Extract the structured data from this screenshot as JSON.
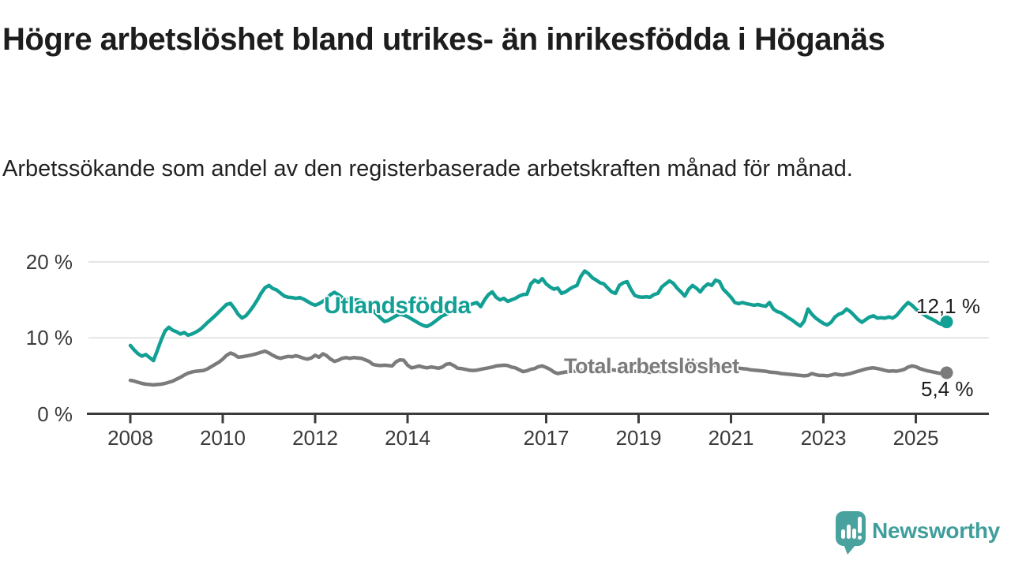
{
  "header": {
    "title": "Högre arbetslöshet bland utrikes- än inrikesfödda i Höganäs",
    "subtitle": "Arbetssökande som andel av den registerbaserade arbetskraften månad för månad."
  },
  "chart_data": {
    "type": "line",
    "unit": "%",
    "x_axis": {
      "start_year": 2008,
      "interval": "monthly",
      "ticks": [
        {
          "label": "2008",
          "year": 2008
        },
        {
          "label": "2010",
          "year": 2010
        },
        {
          "label": "2012",
          "year": 2012
        },
        {
          "label": "2014",
          "year": 2014
        },
        {
          "label": "2017",
          "year": 2017
        },
        {
          "label": "2019",
          "year": 2019
        },
        {
          "label": "2021",
          "year": 2021
        },
        {
          "label": "2023",
          "year": 2023
        },
        {
          "label": "2025",
          "year": 2025
        }
      ]
    },
    "y_axis": {
      "range": [
        0,
        21.5
      ],
      "grid": "horizontal",
      "ticks": [
        {
          "label": "20 %",
          "value": 20
        },
        {
          "label": "10 %",
          "value": 10
        },
        {
          "label": "0 %",
          "value": 0
        }
      ]
    },
    "series": [
      {
        "name": "Utlandsfödda",
        "color": "#12a095",
        "end_label": "12,1 %",
        "end_value": 12.1,
        "values": [
          9.0,
          8.4,
          7.9,
          7.6,
          7.8,
          7.4,
          7.0,
          8.3,
          9.7,
          10.9,
          11.4,
          11.0,
          10.8,
          10.5,
          10.7,
          10.35,
          10.5,
          10.75,
          11.05,
          11.5,
          12.0,
          12.45,
          12.9,
          13.4,
          13.9,
          14.4,
          14.55,
          13.9,
          13.1,
          12.6,
          12.9,
          13.5,
          14.2,
          15.0,
          15.9,
          16.6,
          16.9,
          16.5,
          16.3,
          15.9,
          15.5,
          15.35,
          15.3,
          15.2,
          15.3,
          15.1,
          14.8,
          14.5,
          14.3,
          14.5,
          14.8,
          15.2,
          15.7,
          16.0,
          15.7,
          15.3,
          15.1,
          14.9,
          15.0,
          15.0,
          14.9,
          14.6,
          14.1,
          13.6,
          13.1,
          12.6,
          12.15,
          12.3,
          12.6,
          12.9,
          13.1,
          13.0,
          12.8,
          12.5,
          12.2,
          11.9,
          11.65,
          11.5,
          11.75,
          12.1,
          12.5,
          12.9,
          13.1,
          13.3,
          13.5,
          13.7,
          13.9,
          14.1,
          14.3,
          14.5,
          14.65,
          14.1,
          15.0,
          15.7,
          16.05,
          15.35,
          15.0,
          15.2,
          14.8,
          15.0,
          15.2,
          15.5,
          15.7,
          15.75,
          17.1,
          17.6,
          17.3,
          17.8,
          17.1,
          16.7,
          16.4,
          16.55,
          15.85,
          16.05,
          16.4,
          16.7,
          16.9,
          18.1,
          18.8,
          18.45,
          17.9,
          17.6,
          17.25,
          17.1,
          16.55,
          16.05,
          15.85,
          16.9,
          17.25,
          17.4,
          16.4,
          15.6,
          15.4,
          15.35,
          15.4,
          15.35,
          15.7,
          15.85,
          16.7,
          17.1,
          17.5,
          17.2,
          16.55,
          16.05,
          15.5,
          16.4,
          16.9,
          16.55,
          16.05,
          16.7,
          17.1,
          16.9,
          17.6,
          17.4,
          16.4,
          15.9,
          15.35,
          14.65,
          14.5,
          14.65,
          14.5,
          14.4,
          14.3,
          14.4,
          14.25,
          14.15,
          14.65,
          13.8,
          13.45,
          13.3,
          12.95,
          12.6,
          12.3,
          11.9,
          11.55,
          12.2,
          13.8,
          13.1,
          12.6,
          12.25,
          11.9,
          11.7,
          12.05,
          12.75,
          13.1,
          13.3,
          13.8,
          13.45,
          12.95,
          12.4,
          12.05,
          12.4,
          12.75,
          12.9,
          12.6,
          12.65,
          12.6,
          12.75,
          12.6,
          12.95,
          13.55,
          14.15,
          14.65,
          14.3,
          13.8,
          13.35,
          13.1,
          12.75,
          12.5,
          12.25,
          11.9,
          11.75,
          12.1
        ]
      },
      {
        "name": "Total arbetslöshet",
        "color": "#7b7b7b",
        "end_label": "5,4 %",
        "end_value": 5.4,
        "values": [
          4.4,
          4.3,
          4.15,
          4.0,
          3.9,
          3.85,
          3.8,
          3.85,
          3.9,
          4.0,
          4.15,
          4.3,
          4.55,
          4.8,
          5.1,
          5.35,
          5.5,
          5.6,
          5.65,
          5.7,
          5.9,
          6.2,
          6.5,
          6.8,
          7.2,
          7.7,
          8.0,
          7.8,
          7.45,
          7.5,
          7.6,
          7.7,
          7.8,
          7.95,
          8.1,
          8.25,
          8.0,
          7.7,
          7.45,
          7.3,
          7.45,
          7.55,
          7.5,
          7.65,
          7.5,
          7.3,
          7.2,
          7.35,
          7.7,
          7.45,
          7.9,
          7.65,
          7.2,
          6.9,
          7.05,
          7.3,
          7.4,
          7.3,
          7.4,
          7.35,
          7.3,
          7.1,
          6.9,
          6.5,
          6.4,
          6.35,
          6.4,
          6.35,
          6.3,
          6.85,
          7.1,
          7.05,
          6.4,
          6.05,
          6.15,
          6.3,
          6.15,
          6.05,
          6.15,
          6.1,
          6.0,
          6.15,
          6.5,
          6.6,
          6.35,
          6.0,
          5.95,
          5.85,
          5.75,
          5.7,
          5.75,
          5.85,
          5.95,
          6.05,
          6.15,
          6.3,
          6.35,
          6.4,
          6.35,
          6.15,
          6.05,
          5.8,
          5.55,
          5.65,
          5.85,
          5.95,
          6.2,
          6.3,
          6.1,
          5.85,
          5.5,
          5.3,
          5.4,
          5.5,
          5.55,
          5.6,
          5.65,
          5.7,
          5.75,
          5.8,
          5.85,
          5.9,
          5.95,
          5.9,
          5.85,
          5.8,
          5.75,
          5.7,
          5.65,
          5.6,
          5.6,
          5.6,
          5.55,
          5.5,
          5.5,
          5.45,
          5.5,
          5.55,
          5.6,
          5.65,
          5.7,
          5.8,
          5.9,
          6.0,
          6.1,
          6.2,
          6.35,
          6.5,
          6.55,
          6.5,
          6.45,
          6.4,
          6.35,
          6.3,
          6.25,
          6.2,
          6.1,
          6.05,
          6.0,
          5.95,
          5.9,
          5.8,
          5.75,
          5.7,
          5.65,
          5.6,
          5.5,
          5.45,
          5.4,
          5.3,
          5.25,
          5.2,
          5.15,
          5.1,
          5.05,
          5.0,
          5.05,
          5.3,
          5.15,
          5.05,
          5.05,
          5.0,
          5.1,
          5.25,
          5.15,
          5.1,
          5.2,
          5.3,
          5.45,
          5.6,
          5.75,
          5.9,
          6.0,
          6.05,
          5.95,
          5.85,
          5.7,
          5.6,
          5.65,
          5.6,
          5.7,
          5.85,
          6.15,
          6.3,
          6.2,
          5.95,
          5.8,
          5.65,
          5.55,
          5.45,
          5.35,
          5.3,
          5.4
        ]
      }
    ],
    "colors": {
      "grid": "#dcdcdc",
      "axis": "#3b3b3b",
      "tick_text": "#3b3b3b",
      "value_text": "#1d1d1d"
    }
  },
  "footer": {
    "brand": "Newsworthy",
    "brand_color": "#3f9e9b",
    "icon_color": "#4aa29e"
  }
}
